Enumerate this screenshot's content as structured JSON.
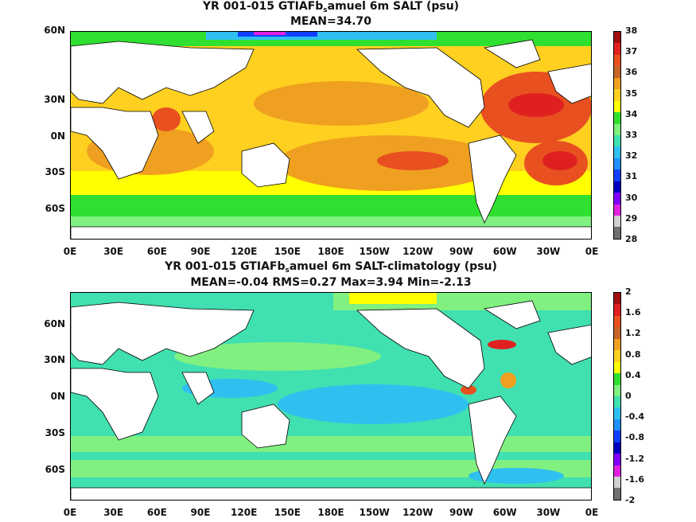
{
  "panels": [
    {
      "title_prefix": "YR 001-015 GTIAFb",
      "title_sub": "s",
      "title_suffix": "amuel 6m SALT (psu)",
      "stats": "MEAN=34.70",
      "ylabels": [
        "60N",
        "30N",
        "0N",
        "30S",
        "60S"
      ],
      "xlabels": [
        "0E",
        "30E",
        "60E",
        "90E",
        "120E",
        "150E",
        "180E",
        "150W",
        "120W",
        "90W",
        "60W",
        "30W",
        "0E"
      ],
      "colorbar_labels": [
        "38",
        "37",
        "36",
        "35",
        "34",
        "33",
        "32",
        "31",
        "30",
        "29",
        "28"
      ],
      "colorbar_colors": [
        "#a01010",
        "#e02020",
        "#e85020",
        "#c86428",
        "#f0a020",
        "#ffd020",
        "#ffff00",
        "#30e030",
        "#80f080",
        "#40e0b0",
        "#30c0f0",
        "#2090ff",
        "#1040ff",
        "#0000c0",
        "#8000ff",
        "#e020e0",
        "#d0d0d0",
        "#707070"
      ]
    },
    {
      "title_prefix": "YR 001-015 GTIAFb",
      "title_sub": "s",
      "title_suffix": "amuel 6m SALT-climatology (psu)",
      "stats": "MEAN=-0.04   RMS=0.27   Max=3.94   Min=-2.13",
      "ylabels": [
        "60N",
        "30N",
        "0N",
        "30S",
        "60S"
      ],
      "xlabels": [
        "0E",
        "30E",
        "60E",
        "90E",
        "120E",
        "150E",
        "180E",
        "150W",
        "120W",
        "90W",
        "60W",
        "30W",
        "0E"
      ],
      "colorbar_labels": [
        "2",
        "1.6",
        "1.2",
        "0.8",
        "0.4",
        "0",
        "-0.4",
        "-0.8",
        "-1.2",
        "-1.6",
        "-2"
      ],
      "colorbar_colors": [
        "#a01010",
        "#e02020",
        "#e85020",
        "#c86428",
        "#f0a020",
        "#ffd020",
        "#ffff00",
        "#30e030",
        "#80f080",
        "#40e0b0",
        "#30c0f0",
        "#2090ff",
        "#1040ff",
        "#0000c0",
        "#8000ff",
        "#e020e0",
        "#d0d0d0",
        "#707070"
      ]
    }
  ]
}
